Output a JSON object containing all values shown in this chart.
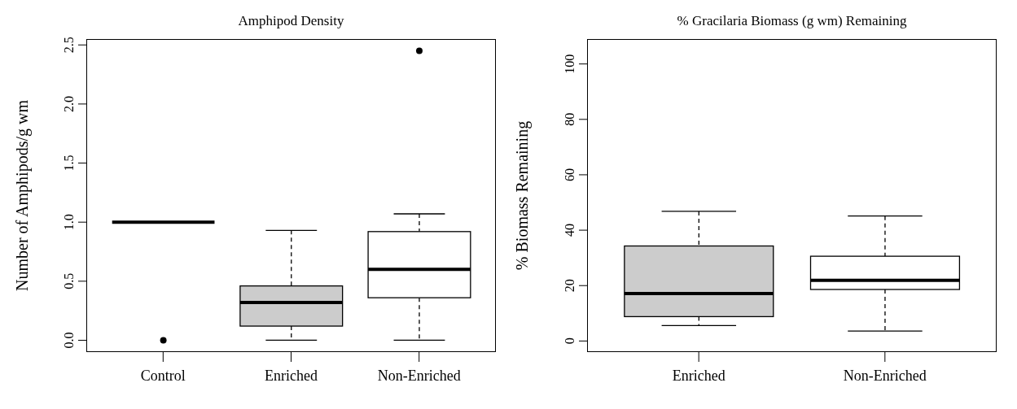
{
  "chart_data": [
    {
      "type": "box",
      "title": "Amphipod Density",
      "ylabel": "Number of Amphipods/g wm",
      "categories": [
        "Control",
        "Enriched",
        "Non-Enriched"
      ],
      "colors": [
        "#000000",
        "#cccccc",
        "#ffffff"
      ],
      "ylim": [
        -0.1,
        2.55
      ],
      "yticks": [
        {
          "value": 0,
          "label": "0.0"
        },
        {
          "value": 0.5,
          "label": "0.5"
        },
        {
          "value": 1,
          "label": "1.0"
        },
        {
          "value": 1.5,
          "label": "1.5"
        },
        {
          "value": 2,
          "label": "2.0"
        },
        {
          "value": 2.5,
          "label": "2.5"
        }
      ],
      "boxes": [
        {
          "low": 1,
          "q1": 1,
          "median": 1,
          "q3": 1,
          "high": 1,
          "outliers": [
            0
          ]
        },
        {
          "low": 0,
          "q1": 0.12,
          "median": 0.32,
          "q3": 0.46,
          "high": 0.93
        },
        {
          "low": 0,
          "q1": 0.36,
          "median": 0.6,
          "q3": 0.92,
          "high": 1.07,
          "outliers": [
            2.45
          ]
        }
      ]
    },
    {
      "type": "box",
      "title": "% Gracilaria Biomass (g wm) Remaining",
      "ylabel": "% Biomass Remaining",
      "categories": [
        "Enriched",
        "Non-Enriched"
      ],
      "colors": [
        "#cccccc",
        "#ffffff"
      ],
      "ylim": [
        -4,
        109
      ],
      "yticks": [
        0,
        20,
        40,
        60,
        80,
        100
      ],
      "boxes": [
        {
          "low": 5.6,
          "q1": 8.8,
          "median": 17.1,
          "q3": 34.3,
          "high": 46.8
        },
        {
          "low": 3.6,
          "q1": 18.6,
          "median": 21.9,
          "q3": 30.6,
          "high": 45.1
        }
      ]
    }
  ]
}
